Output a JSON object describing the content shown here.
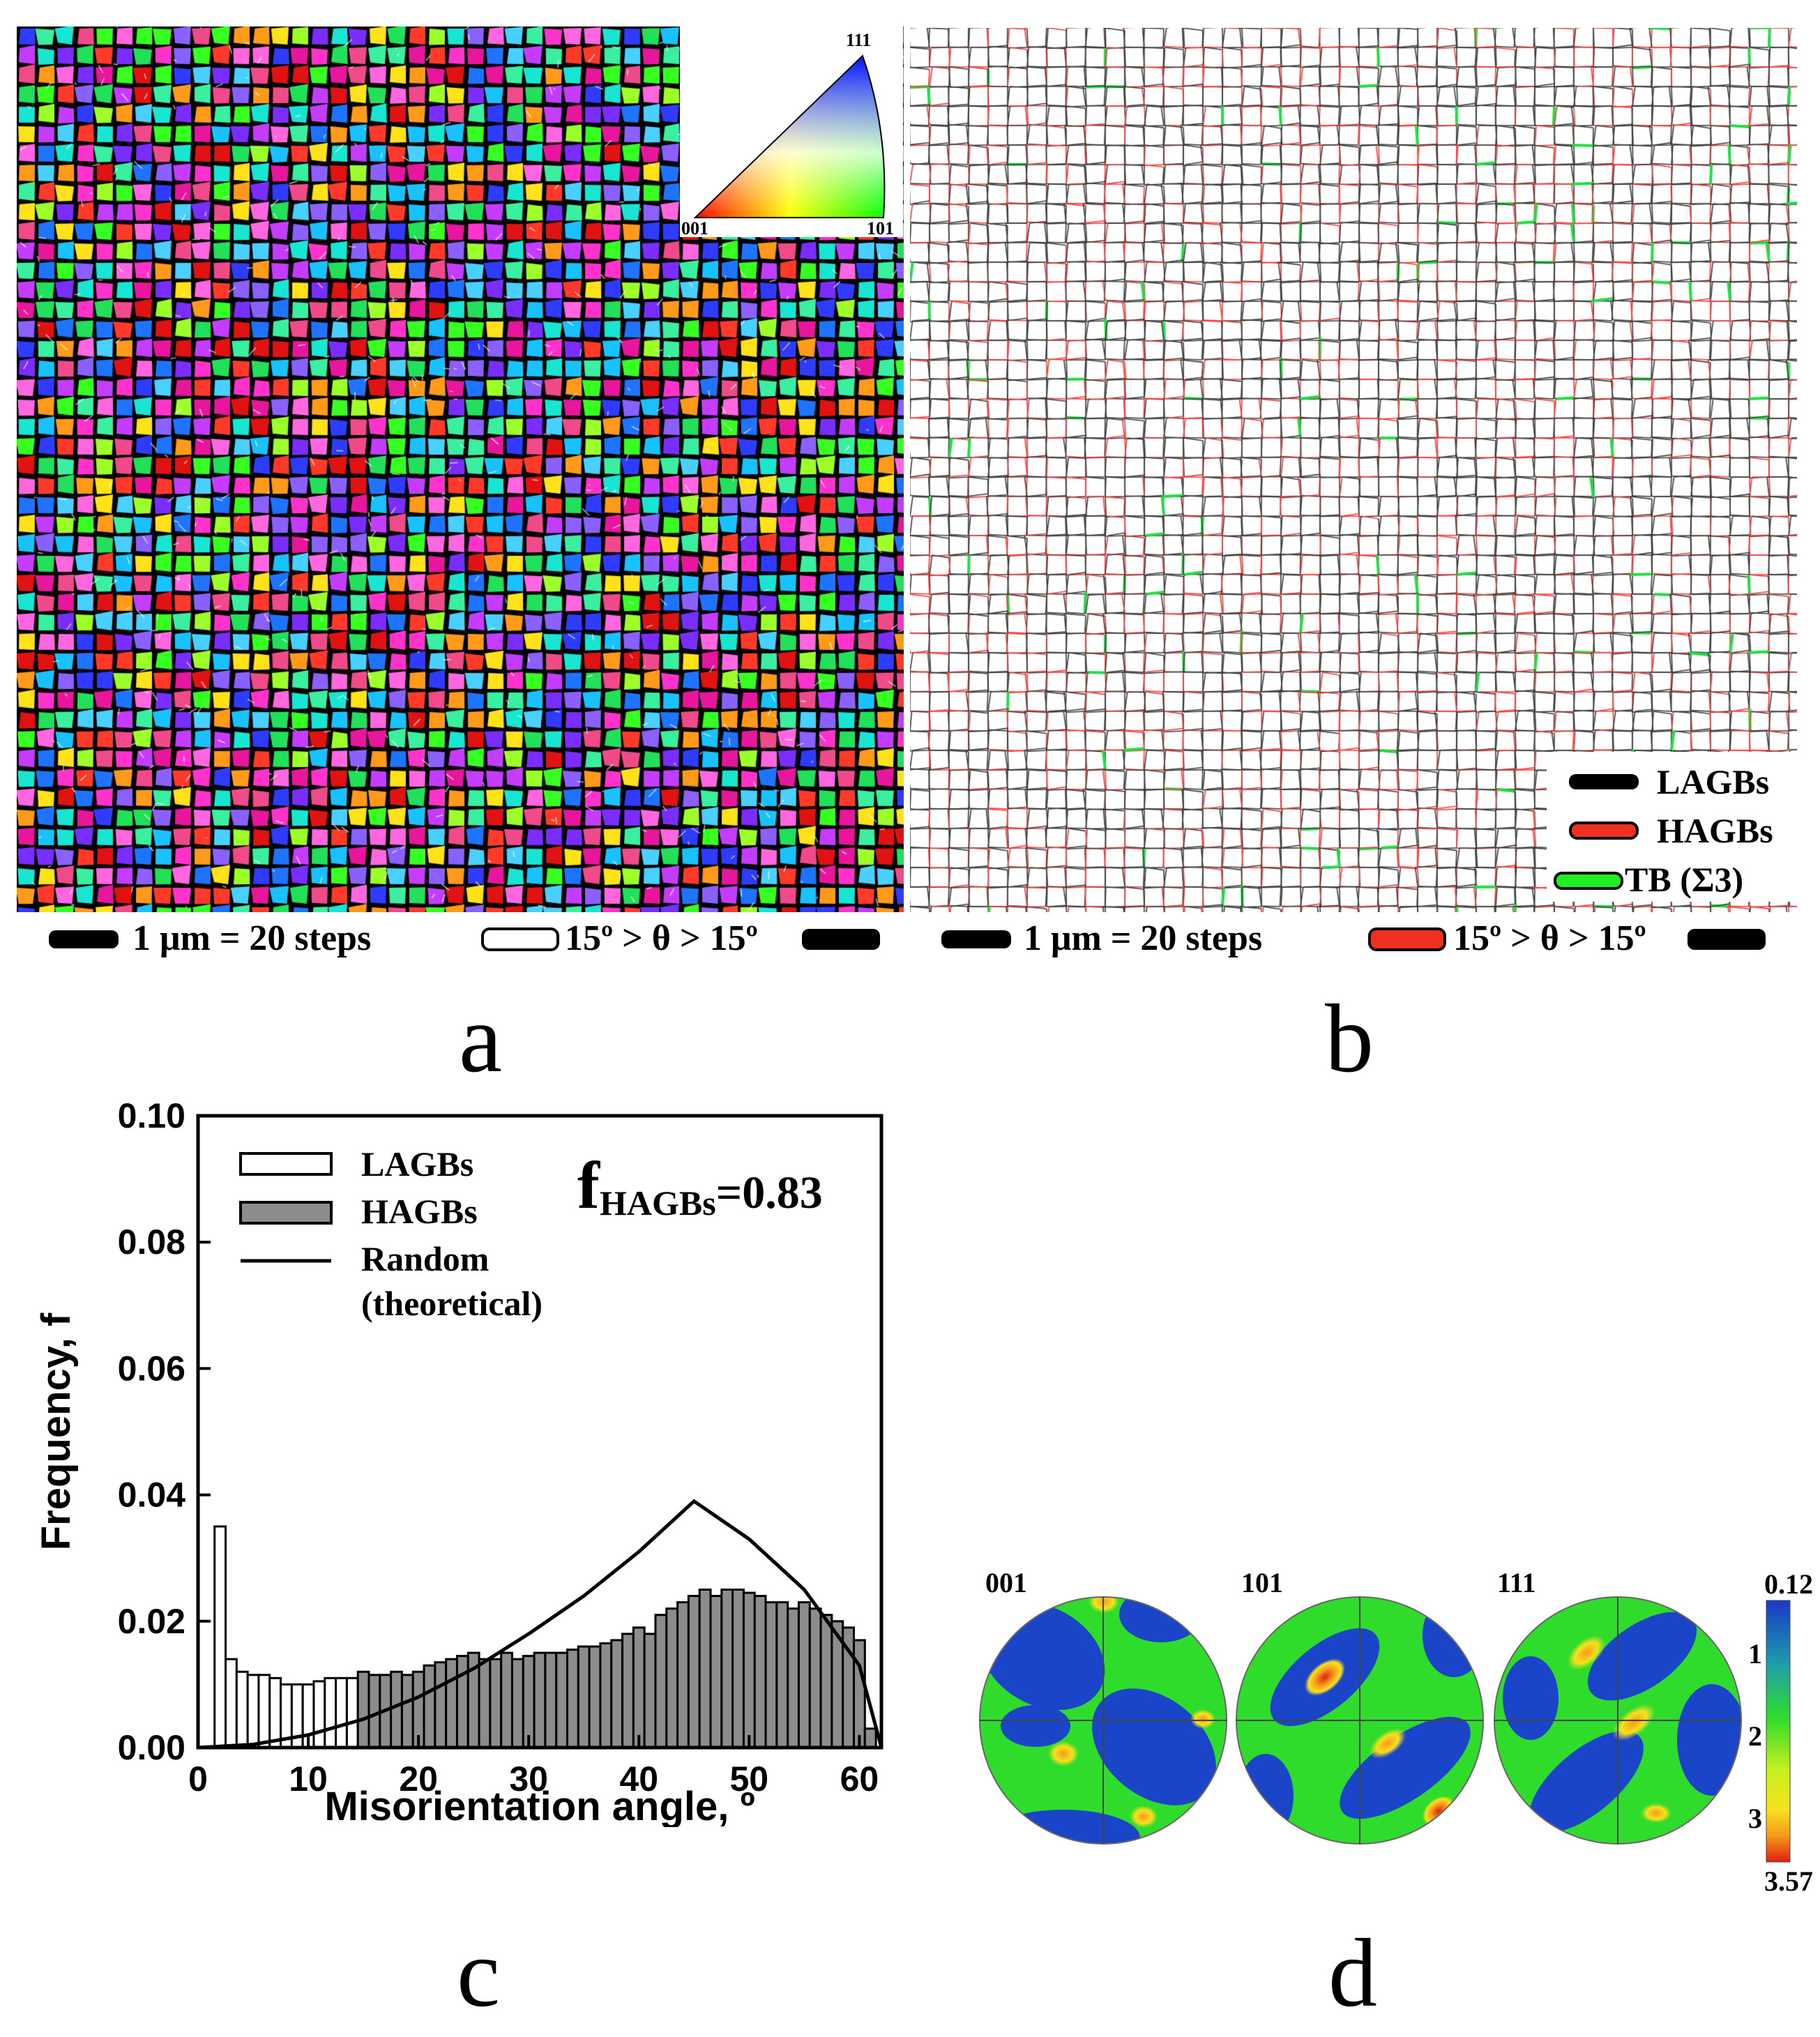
{
  "panel_a": {
    "ipf_key": {
      "v111": "111",
      "v001": "001",
      "v101": "101"
    },
    "scale_text": "1 μm = 20 steps",
    "boundary_text": "15º > θ > 15º",
    "letter": "a"
  },
  "panel_b": {
    "legend": {
      "lagbs": "LAGBs",
      "hagbs": "HAGBs",
      "tb": "TB (Σ3)"
    },
    "scale_text": "1 μm = 20 steps",
    "boundary_text": "15º > θ > 15º",
    "letter": "b"
  },
  "chart_data": {
    "type": "bar",
    "xlabel": "Misorientation angle, º",
    "ylabel": "Frequency, f",
    "xlim": [
      0,
      62
    ],
    "ylim": [
      0,
      0.1
    ],
    "x_ticks": [
      "0",
      "10",
      "20",
      "30",
      "40",
      "50",
      "60"
    ],
    "y_ticks": [
      "0.00",
      "0.02",
      "0.04",
      "0.06",
      "0.08",
      "0.10"
    ],
    "bin_width": 1,
    "legend": {
      "lagbs": "LAGBs",
      "hagbs": "HAGBs",
      "random_line1": "Random",
      "random_line2": "(theoretical)"
    },
    "annotation": {
      "main": "f",
      "sub": "HAGBs",
      "value": "=0.83"
    },
    "series": [
      {
        "name": "LAGBs",
        "x": [
          2,
          3,
          4,
          5,
          6,
          7,
          8,
          9,
          10,
          11,
          12,
          13,
          14
        ],
        "values": [
          0.035,
          0.014,
          0.012,
          0.0115,
          0.0115,
          0.011,
          0.01,
          0.01,
          0.01,
          0.0105,
          0.011,
          0.011,
          0.011
        ]
      },
      {
        "name": "HAGBs",
        "x": [
          15,
          16,
          17,
          18,
          19,
          20,
          21,
          22,
          23,
          24,
          25,
          26,
          27,
          28,
          29,
          30,
          31,
          32,
          33,
          34,
          35,
          36,
          37,
          38,
          39,
          40,
          41,
          42,
          43,
          44,
          45,
          46,
          47,
          48,
          49,
          50,
          51,
          52,
          53,
          54,
          55,
          56,
          57,
          58,
          59,
          60,
          61
        ],
        "values": [
          0.012,
          0.0115,
          0.0115,
          0.012,
          0.0115,
          0.012,
          0.013,
          0.0135,
          0.014,
          0.0145,
          0.015,
          0.014,
          0.014,
          0.015,
          0.014,
          0.0145,
          0.015,
          0.015,
          0.015,
          0.0155,
          0.016,
          0.016,
          0.0165,
          0.017,
          0.018,
          0.019,
          0.018,
          0.021,
          0.022,
          0.023,
          0.024,
          0.025,
          0.024,
          0.025,
          0.025,
          0.0245,
          0.024,
          0.023,
          0.023,
          0.022,
          0.023,
          0.022,
          0.021,
          0.02,
          0.019,
          0.017,
          0.003
        ]
      },
      {
        "name": "Random (theoretical)",
        "x": [
          0,
          5,
          10,
          15,
          20,
          25,
          30,
          35,
          40,
          45,
          50,
          55,
          60,
          62
        ],
        "values": [
          0,
          0.0005,
          0.002,
          0.0045,
          0.008,
          0.0125,
          0.018,
          0.024,
          0.031,
          0.039,
          0.033,
          0.025,
          0.013,
          0.0
        ]
      }
    ]
  },
  "panel_c": {
    "letter": "c"
  },
  "panel_d": {
    "poles": [
      "001",
      "101",
      "111"
    ],
    "colorbar": {
      "max": "0.12",
      "t1": "1",
      "t2": "2",
      "t3": "3",
      "min": "3.57"
    },
    "letter": "d",
    "colors": {
      "blue": "#1a45c8",
      "green": "#2fdc2b",
      "yellow": "#f7e11e",
      "orange": "#f59a1a",
      "red": "#e02010"
    }
  }
}
